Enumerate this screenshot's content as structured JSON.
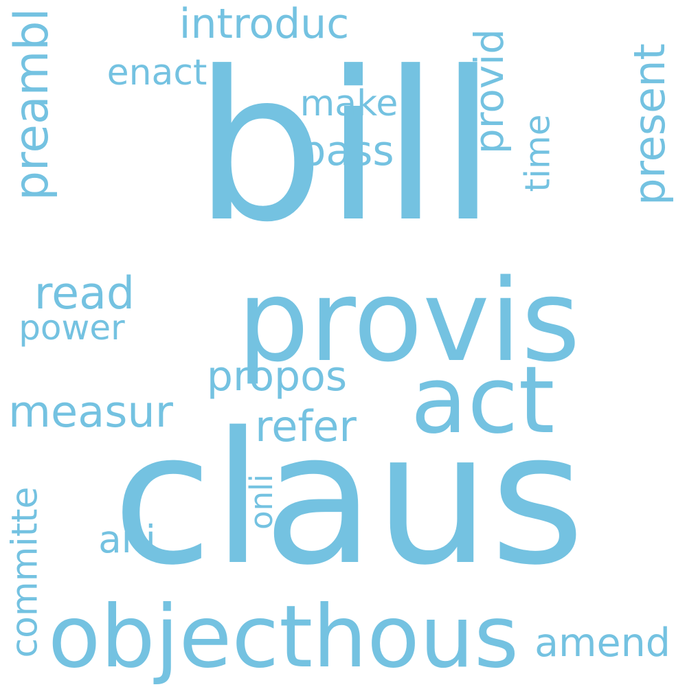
{
  "color": "#74C2E1",
  "words": [
    "bill",
    "provis",
    "claus",
    "act",
    "objecthous",
    "introduc",
    "enact",
    "preambl",
    "make",
    "pass",
    "provid",
    "time",
    "present",
    "read",
    "power",
    "propos",
    "measur",
    "refer",
    "committe",
    "onli",
    "ani",
    "amend"
  ]
}
